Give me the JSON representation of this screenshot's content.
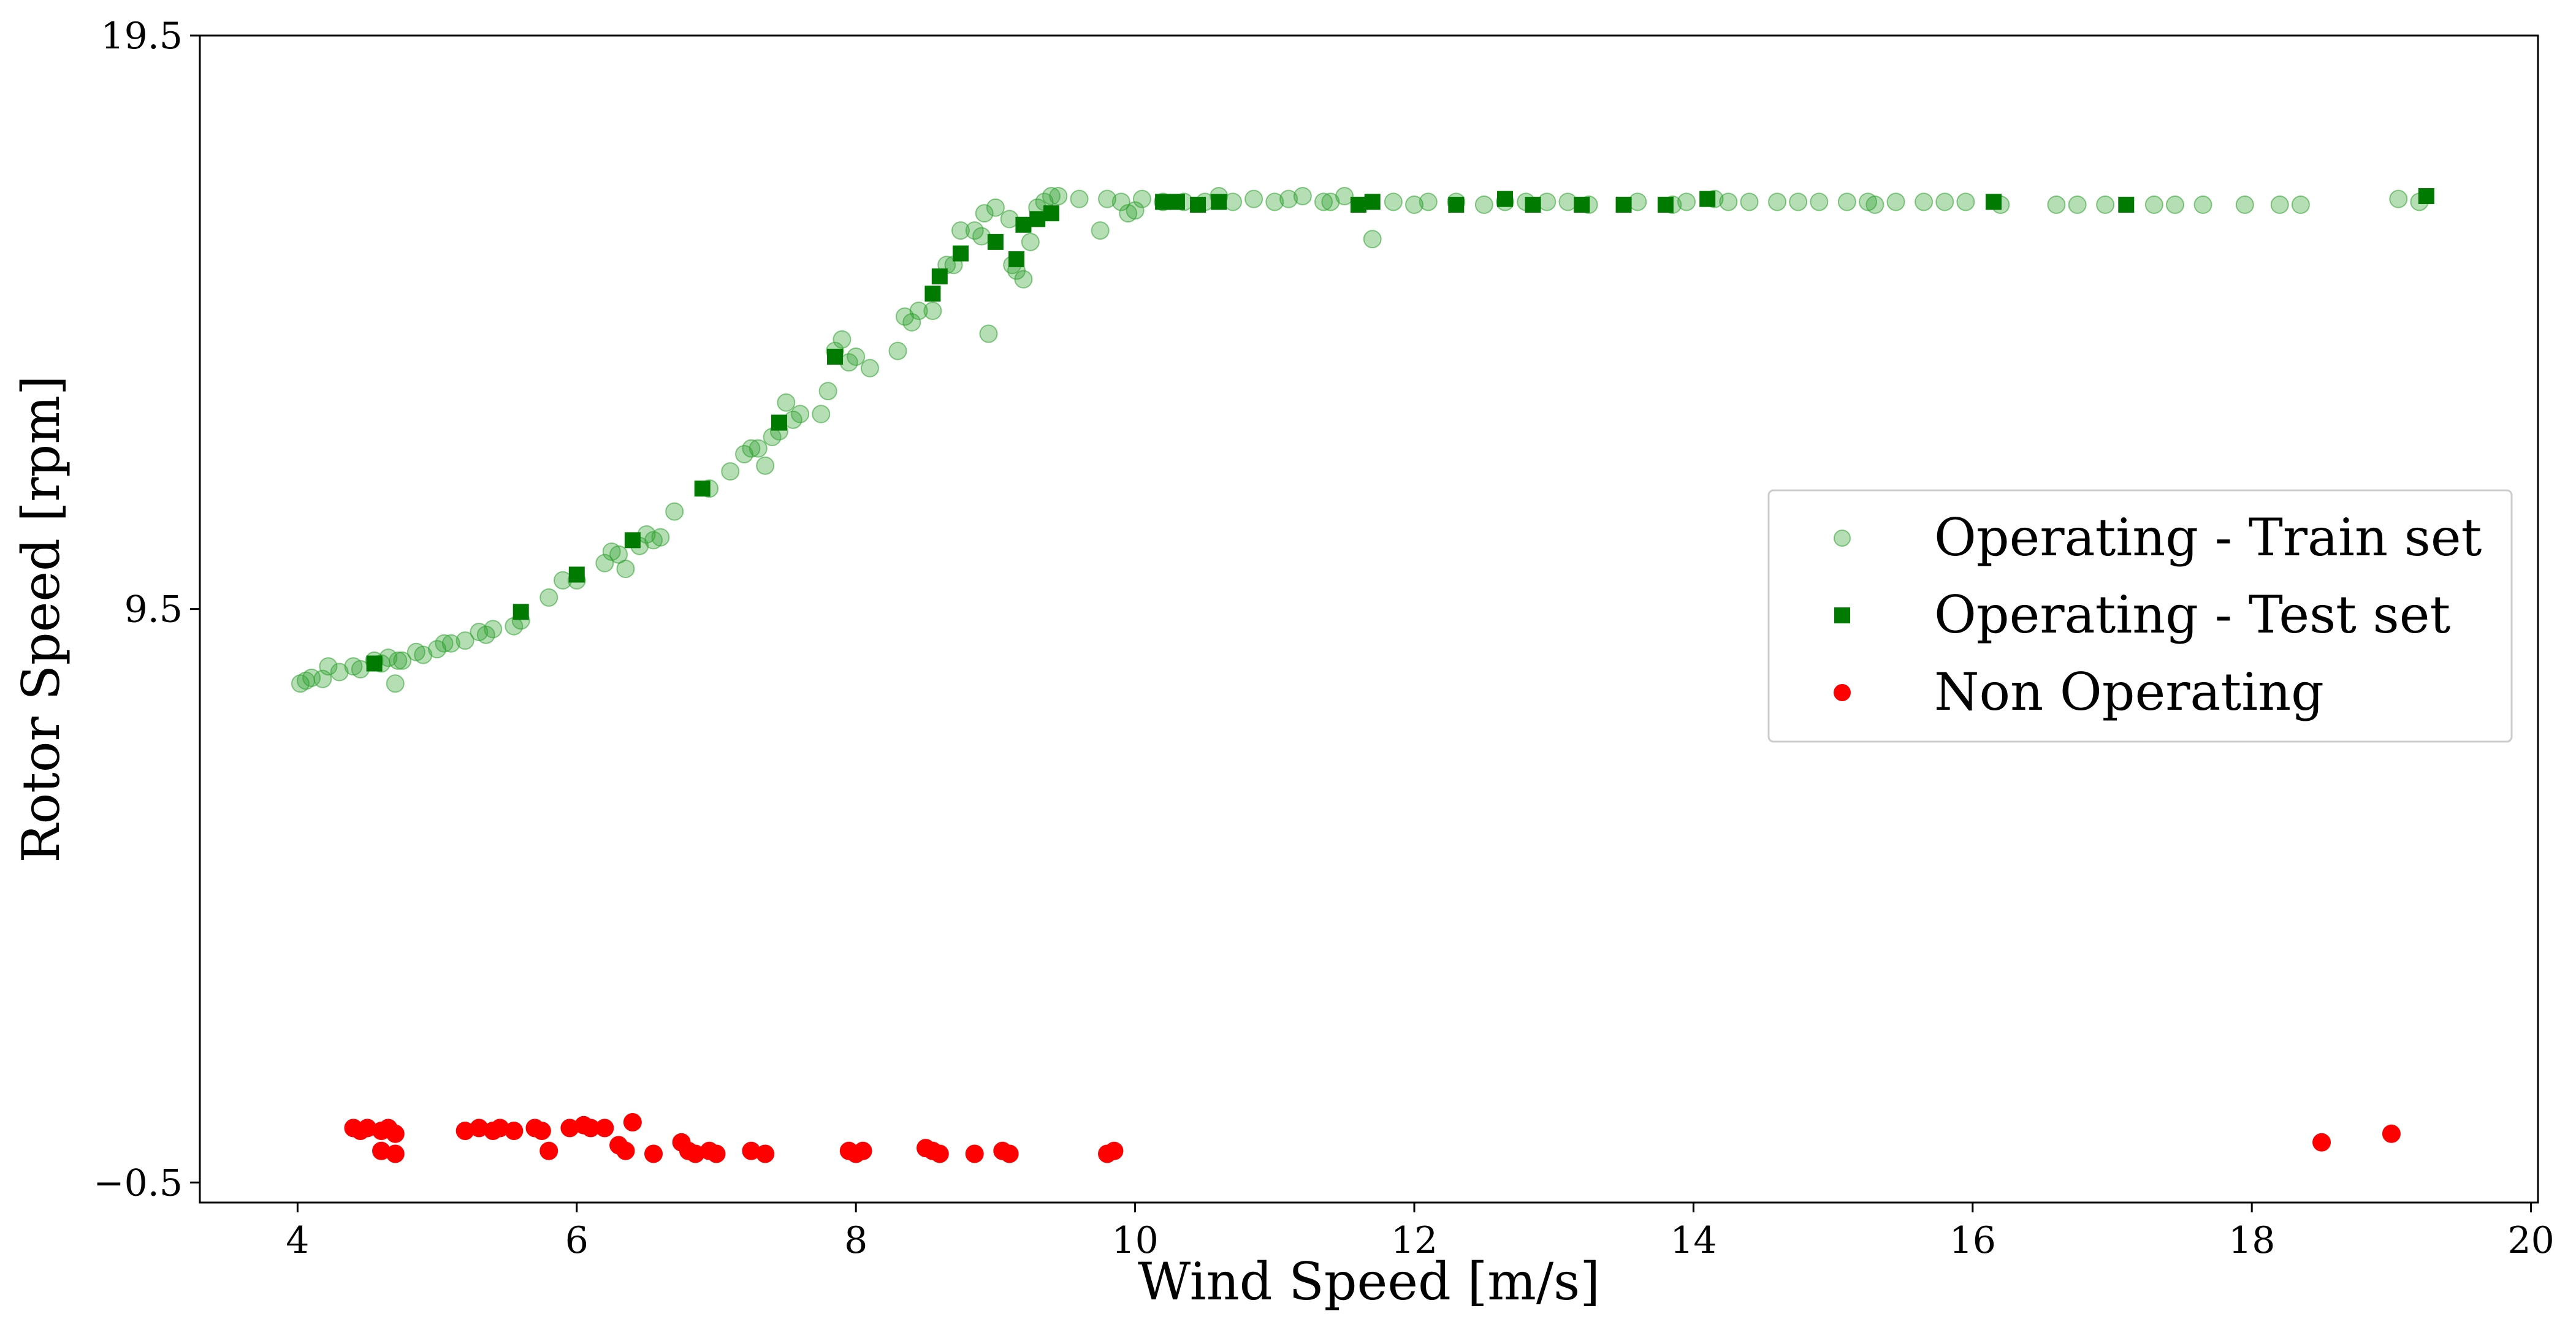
{
  "chart_data": {
    "type": "scatter",
    "title": "",
    "xlabel": "Wind Speed [m/s]",
    "ylabel": "Rotor Speed [rpm]",
    "xlim": [
      3.3,
      20.05
    ],
    "ylim": [
      -0.85,
      19.5
    ],
    "xticks": [
      4,
      6,
      8,
      10,
      12,
      14,
      16,
      18,
      20
    ],
    "xtick_labels": [
      "4",
      "6",
      "8",
      "10",
      "12",
      "14",
      "16",
      "18",
      "20"
    ],
    "yticks": [
      -0.5,
      9.5,
      19.5
    ],
    "ytick_labels": [
      "−0.5",
      "9.5",
      "19.5"
    ],
    "grid": false,
    "legend_position": "center-right",
    "series": [
      {
        "name": "Operating - Train set",
        "marker": "circle",
        "color": "#2ca02c",
        "alpha": 0.35,
        "points": [
          [
            4.02,
            8.2
          ],
          [
            4.06,
            8.25
          ],
          [
            4.1,
            8.3
          ],
          [
            4.18,
            8.28
          ],
          [
            4.22,
            8.5
          ],
          [
            4.3,
            8.4
          ],
          [
            4.4,
            8.5
          ],
          [
            4.45,
            8.45
          ],
          [
            4.55,
            8.6
          ],
          [
            4.6,
            8.55
          ],
          [
            4.65,
            8.65
          ],
          [
            4.7,
            8.2
          ],
          [
            4.72,
            8.6
          ],
          [
            4.75,
            8.6
          ],
          [
            4.85,
            8.75
          ],
          [
            4.9,
            8.7
          ],
          [
            5.0,
            8.8
          ],
          [
            5.05,
            8.9
          ],
          [
            5.1,
            8.9
          ],
          [
            5.2,
            8.95
          ],
          [
            5.3,
            9.1
          ],
          [
            5.35,
            9.05
          ],
          [
            5.4,
            9.15
          ],
          [
            5.55,
            9.2
          ],
          [
            5.6,
            9.3
          ],
          [
            5.8,
            9.7
          ],
          [
            5.9,
            10.0
          ],
          [
            6.0,
            10.0
          ],
          [
            6.2,
            10.3
          ],
          [
            6.25,
            10.5
          ],
          [
            6.3,
            10.45
          ],
          [
            6.35,
            10.2
          ],
          [
            6.45,
            10.6
          ],
          [
            6.5,
            10.8
          ],
          [
            6.55,
            10.7
          ],
          [
            6.6,
            10.75
          ],
          [
            6.7,
            11.2
          ],
          [
            6.95,
            11.6
          ],
          [
            7.1,
            11.9
          ],
          [
            7.2,
            12.2
          ],
          [
            7.25,
            12.3
          ],
          [
            7.3,
            12.3
          ],
          [
            7.35,
            12.0
          ],
          [
            7.4,
            12.5
          ],
          [
            7.45,
            12.6
          ],
          [
            7.5,
            13.1
          ],
          [
            7.55,
            12.8
          ],
          [
            7.6,
            12.9
          ],
          [
            7.75,
            12.9
          ],
          [
            7.8,
            13.3
          ],
          [
            7.85,
            14.0
          ],
          [
            7.9,
            14.2
          ],
          [
            7.95,
            13.8
          ],
          [
            8.0,
            13.9
          ],
          [
            8.1,
            13.7
          ],
          [
            8.3,
            14.0
          ],
          [
            8.35,
            14.6
          ],
          [
            8.4,
            14.5
          ],
          [
            8.45,
            14.7
          ],
          [
            8.55,
            14.7
          ],
          [
            8.65,
            15.5
          ],
          [
            8.7,
            15.5
          ],
          [
            8.75,
            16.1
          ],
          [
            8.85,
            16.1
          ],
          [
            8.9,
            16.0
          ],
          [
            8.92,
            16.4
          ],
          [
            8.95,
            14.3
          ],
          [
            9.0,
            16.5
          ],
          [
            9.1,
            16.3
          ],
          [
            9.12,
            15.5
          ],
          [
            9.15,
            15.4
          ],
          [
            9.2,
            15.25
          ],
          [
            9.25,
            15.9
          ],
          [
            9.3,
            16.5
          ],
          [
            9.35,
            16.6
          ],
          [
            9.4,
            16.7
          ],
          [
            9.45,
            16.7
          ],
          [
            9.6,
            16.65
          ],
          [
            9.75,
            16.1
          ],
          [
            9.8,
            16.65
          ],
          [
            9.9,
            16.6
          ],
          [
            9.95,
            16.4
          ],
          [
            10.0,
            16.45
          ],
          [
            10.05,
            16.65
          ],
          [
            10.2,
            16.6
          ],
          [
            10.35,
            16.6
          ],
          [
            10.5,
            16.6
          ],
          [
            10.6,
            16.7
          ],
          [
            10.7,
            16.6
          ],
          [
            10.85,
            16.65
          ],
          [
            11.0,
            16.6
          ],
          [
            11.1,
            16.65
          ],
          [
            11.2,
            16.7
          ],
          [
            11.35,
            16.6
          ],
          [
            11.4,
            16.6
          ],
          [
            11.5,
            16.7
          ],
          [
            11.7,
            15.95
          ],
          [
            11.85,
            16.6
          ],
          [
            12.0,
            16.55
          ],
          [
            12.1,
            16.6
          ],
          [
            12.3,
            16.6
          ],
          [
            12.5,
            16.55
          ],
          [
            12.65,
            16.6
          ],
          [
            12.8,
            16.6
          ],
          [
            12.95,
            16.6
          ],
          [
            13.1,
            16.6
          ],
          [
            13.25,
            16.55
          ],
          [
            13.6,
            16.6
          ],
          [
            13.85,
            16.55
          ],
          [
            13.95,
            16.6
          ],
          [
            14.15,
            16.65
          ],
          [
            14.25,
            16.6
          ],
          [
            14.4,
            16.6
          ],
          [
            14.6,
            16.6
          ],
          [
            14.75,
            16.6
          ],
          [
            14.9,
            16.6
          ],
          [
            15.1,
            16.6
          ],
          [
            15.25,
            16.6
          ],
          [
            15.3,
            16.55
          ],
          [
            15.45,
            16.6
          ],
          [
            15.65,
            16.6
          ],
          [
            15.8,
            16.6
          ],
          [
            15.95,
            16.6
          ],
          [
            16.2,
            16.55
          ],
          [
            16.6,
            16.55
          ],
          [
            16.75,
            16.55
          ],
          [
            16.95,
            16.55
          ],
          [
            17.3,
            16.55
          ],
          [
            17.45,
            16.55
          ],
          [
            17.65,
            16.55
          ],
          [
            17.95,
            16.55
          ],
          [
            18.2,
            16.55
          ],
          [
            18.35,
            16.55
          ],
          [
            19.05,
            16.65
          ],
          [
            19.2,
            16.6
          ]
        ]
      },
      {
        "name": "Operating - Test set",
        "marker": "square",
        "color": "#007a00",
        "alpha": 1,
        "points": [
          [
            4.55,
            8.55
          ],
          [
            5.6,
            9.45
          ],
          [
            6.0,
            10.1
          ],
          [
            6.4,
            10.7
          ],
          [
            6.9,
            11.6
          ],
          [
            7.45,
            12.75
          ],
          [
            7.85,
            13.9
          ],
          [
            8.55,
            15.0
          ],
          [
            8.6,
            15.3
          ],
          [
            8.75,
            15.7
          ],
          [
            9.0,
            15.9
          ],
          [
            9.15,
            15.6
          ],
          [
            9.2,
            16.2
          ],
          [
            9.3,
            16.3
          ],
          [
            9.4,
            16.4
          ],
          [
            10.2,
            16.6
          ],
          [
            10.3,
            16.6
          ],
          [
            10.45,
            16.55
          ],
          [
            10.6,
            16.6
          ],
          [
            11.6,
            16.55
          ],
          [
            11.7,
            16.6
          ],
          [
            12.3,
            16.55
          ],
          [
            12.65,
            16.65
          ],
          [
            12.85,
            16.55
          ],
          [
            13.2,
            16.55
          ],
          [
            13.5,
            16.55
          ],
          [
            13.8,
            16.55
          ],
          [
            14.1,
            16.65
          ],
          [
            16.15,
            16.6
          ],
          [
            17.1,
            16.55
          ],
          [
            19.25,
            16.7
          ]
        ]
      },
      {
        "name": "Non Operating",
        "marker": "circle",
        "color": "#ff0000",
        "alpha": 1,
        "points": [
          [
            4.4,
            0.45
          ],
          [
            4.45,
            0.4
          ],
          [
            4.5,
            0.45
          ],
          [
            4.6,
            0.4
          ],
          [
            4.65,
            0.45
          ],
          [
            4.7,
            0.35
          ],
          [
            4.6,
            0.05
          ],
          [
            4.7,
            0.0
          ],
          [
            5.2,
            0.4
          ],
          [
            5.3,
            0.45
          ],
          [
            5.4,
            0.4
          ],
          [
            5.45,
            0.45
          ],
          [
            5.55,
            0.4
          ],
          [
            5.7,
            0.45
          ],
          [
            5.75,
            0.4
          ],
          [
            5.8,
            0.05
          ],
          [
            5.95,
            0.45
          ],
          [
            6.05,
            0.5
          ],
          [
            6.1,
            0.45
          ],
          [
            6.2,
            0.45
          ],
          [
            6.3,
            0.15
          ],
          [
            6.35,
            0.05
          ],
          [
            6.4,
            0.55
          ],
          [
            6.55,
            0.0
          ],
          [
            6.75,
            0.2
          ],
          [
            6.8,
            0.05
          ],
          [
            6.85,
            0.0
          ],
          [
            6.95,
            0.05
          ],
          [
            7.0,
            0.0
          ],
          [
            7.25,
            0.05
          ],
          [
            7.35,
            0.0
          ],
          [
            7.95,
            0.05
          ],
          [
            8.0,
            0.0
          ],
          [
            8.05,
            0.05
          ],
          [
            8.5,
            0.1
          ],
          [
            8.55,
            0.05
          ],
          [
            8.6,
            0.0
          ],
          [
            8.85,
            0.0
          ],
          [
            9.05,
            0.05
          ],
          [
            9.1,
            0.0
          ],
          [
            9.8,
            0.0
          ],
          [
            9.85,
            0.05
          ],
          [
            18.5,
            0.2
          ],
          [
            19.0,
            0.35
          ]
        ]
      }
    ]
  }
}
